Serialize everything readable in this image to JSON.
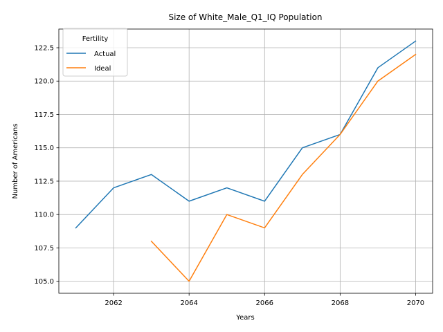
{
  "chart_data": {
    "type": "line",
    "title": "Size of White_Male_Q1_IQ Population",
    "xlabel": "Years",
    "ylabel": "Number of Americans",
    "xlim": [
      2060.55,
      2070.45
    ],
    "ylim": [
      104.1,
      123.9
    ],
    "xticks": [
      2062,
      2064,
      2066,
      2068,
      2070
    ],
    "yticks": [
      105.0,
      107.5,
      110.0,
      112.5,
      115.0,
      117.5,
      120.0,
      122.5
    ],
    "grid": true,
    "legend": {
      "title": "Fertility",
      "placement": "top-left"
    },
    "series": [
      {
        "name": "Actual",
        "color": "#1f77b4",
        "x": [
          2061,
          2062,
          2063,
          2064,
          2065,
          2066,
          2067,
          2068,
          2069,
          2070
        ],
        "y": [
          109,
          112,
          113,
          111,
          112,
          111,
          115,
          116,
          121,
          123
        ]
      },
      {
        "name": "Ideal",
        "color": "#ff7f0e",
        "x": [
          2063,
          2064,
          2065,
          2066,
          2067,
          2068,
          2069,
          2070
        ],
        "y": [
          108,
          105,
          110,
          109,
          113,
          116,
          120,
          122
        ]
      }
    ]
  }
}
